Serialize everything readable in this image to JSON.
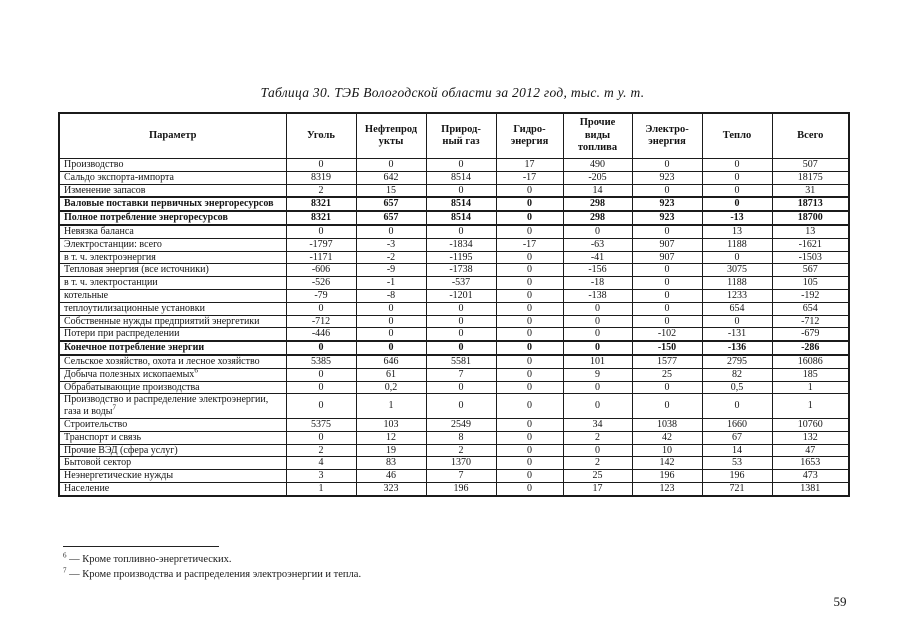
{
  "page": {
    "title": "Таблица 30. ТЭБ Вологодской области за 2012 год, тыс. т у. т.",
    "page_number": "59"
  },
  "table": {
    "columns": [
      "Параметр",
      "Уголь",
      "Нефтепрод\nукты",
      "Природ-\nный газ",
      "Гидро-\nэнергия",
      "Прочие\nвиды\nтоплива",
      "Электро-\nэнергия",
      "Тепло",
      "Всего"
    ],
    "rows": [
      {
        "label": "Производство",
        "sup": "",
        "bold": false,
        "values": [
          "0",
          "0",
          "0",
          "17",
          "490",
          "0",
          "0",
          "507"
        ]
      },
      {
        "label": "Сальдо экспорта-импорта",
        "sup": "",
        "bold": false,
        "values": [
          "8319",
          "642",
          "8514",
          "-17",
          "-205",
          "923",
          "0",
          "18175"
        ]
      },
      {
        "label": "Изменение запасов",
        "sup": "",
        "bold": false,
        "values": [
          "2",
          "15",
          "0",
          "0",
          "14",
          "0",
          "0",
          "31"
        ]
      },
      {
        "label": "Валовые поставки первичных энергоресурсов",
        "sup": "",
        "bold": true,
        "values": [
          "8321",
          "657",
          "8514",
          "0",
          "298",
          "923",
          "0",
          "18713"
        ]
      },
      {
        "label": "Полное потребление энергоресурсов",
        "sup": "",
        "bold": true,
        "values": [
          "8321",
          "657",
          "8514",
          "0",
          "298",
          "923",
          "-13",
          "18700"
        ]
      },
      {
        "label": "Невязка баланса",
        "sup": "",
        "bold": false,
        "values": [
          "0",
          "0",
          "0",
          "0",
          "0",
          "0",
          "13",
          "13"
        ]
      },
      {
        "label": "Электростанции: всего",
        "sup": "",
        "bold": false,
        "values": [
          "-1797",
          "-3",
          "-1834",
          "-17",
          "-63",
          "907",
          "1188",
          "-1621"
        ]
      },
      {
        "label": "в т. ч. электроэнергия",
        "sup": "",
        "bold": false,
        "values": [
          "-1171",
          "-2",
          "-1195",
          "0",
          "-41",
          "907",
          "0",
          "-1503"
        ]
      },
      {
        "label": "Тепловая энергия (все источники)",
        "sup": "",
        "bold": false,
        "values": [
          "-606",
          "-9",
          "-1738",
          "0",
          "-156",
          "0",
          "3075",
          "567"
        ]
      },
      {
        "label": "в т. ч. электростанции",
        "sup": "",
        "bold": false,
        "values": [
          "-526",
          "-1",
          "-537",
          "0",
          "-18",
          "0",
          "1188",
          "105"
        ]
      },
      {
        "label": "котельные",
        "sup": "",
        "bold": false,
        "values": [
          "-79",
          "-8",
          "-1201",
          "0",
          "-138",
          "0",
          "1233",
          "-192"
        ]
      },
      {
        "label": "теплоутилизационные установки",
        "sup": "",
        "bold": false,
        "values": [
          "0",
          "0",
          "0",
          "0",
          "0",
          "0",
          "654",
          "654"
        ]
      },
      {
        "label": "Собственные нужды предприятий энергетики",
        "sup": "",
        "bold": false,
        "values": [
          "-712",
          "0",
          "0",
          "0",
          "0",
          "0",
          "0",
          "-712"
        ]
      },
      {
        "label": "Потери при распределении",
        "sup": "",
        "bold": false,
        "values": [
          "-446",
          "0",
          "0",
          "0",
          "0",
          "-102",
          "-131",
          "-679"
        ]
      },
      {
        "label": "Конечное потребление энергии",
        "sup": "",
        "bold": true,
        "values": [
          "0",
          "0",
          "0",
          "0",
          "0",
          "-150",
          "-136",
          "-286"
        ]
      },
      {
        "label": "Сельское хозяйство, охота и лесное хозяйство",
        "sup": "",
        "bold": false,
        "values": [
          "5385",
          "646",
          "5581",
          "0",
          "101",
          "1577",
          "2795",
          "16086"
        ]
      },
      {
        "label": "Добыча полезных ископаемых",
        "sup": "6",
        "bold": false,
        "values": [
          "0",
          "61",
          "7",
          "0",
          "9",
          "25",
          "82",
          "185"
        ]
      },
      {
        "label": "Обрабатывающие производства",
        "sup": "",
        "bold": false,
        "values": [
          "0",
          "0,2",
          "0",
          "0",
          "0",
          "0",
          "0,5",
          "1"
        ]
      },
      {
        "label": "Производство и распределение электроэнергии, газа и воды",
        "sup": "7",
        "bold": false,
        "values": [
          "0",
          "1",
          "0",
          "0",
          "0",
          "0",
          "0",
          "1"
        ]
      },
      {
        "label": "Строительство",
        "sup": "",
        "bold": false,
        "values": [
          "5375",
          "103",
          "2549",
          "0",
          "34",
          "1038",
          "1660",
          "10760"
        ]
      },
      {
        "label": "Транспорт и связь",
        "sup": "",
        "bold": false,
        "values": [
          "0",
          "12",
          "8",
          "0",
          "2",
          "42",
          "67",
          "132"
        ]
      },
      {
        "label": "Прочие ВЭД (сфера услуг)",
        "sup": "",
        "bold": false,
        "values": [
          "2",
          "19",
          "2",
          "0",
          "0",
          "10",
          "14",
          "47"
        ]
      },
      {
        "label": "Бытовой сектор",
        "sup": "",
        "bold": false,
        "values": [
          "4",
          "83",
          "1370",
          "0",
          "2",
          "142",
          "53",
          "1653"
        ]
      },
      {
        "label": "Неэнергетические нужды",
        "sup": "",
        "bold": false,
        "values": [
          "3",
          "46",
          "7",
          "0",
          "25",
          "196",
          "196",
          "473"
        ]
      },
      {
        "label": "Население",
        "sup": "",
        "bold": false,
        "values": [
          "1",
          "323",
          "196",
          "0",
          "17",
          "123",
          "721",
          "1381"
        ]
      }
    ]
  },
  "footnotes": [
    {
      "marker": "6",
      "text": "— Кроме топливно-энергетических."
    },
    {
      "marker": "7",
      "text": "— Кроме производства и распределения электроэнергии и тепла."
    }
  ]
}
